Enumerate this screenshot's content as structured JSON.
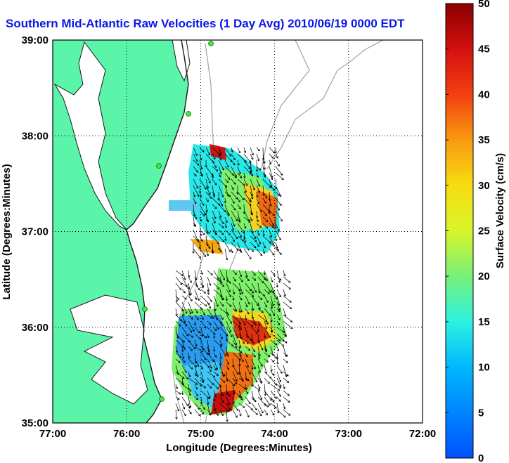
{
  "title": "Southern Mid-Atlantic Raw Velocities (1 Day Avg) 2010/06/19 0000 EDT",
  "map": {
    "x_axis_label": "Longitude (Degrees:Minutes)",
    "y_axis_label": "Latitude (Degrees:Minutes)",
    "x_ticks": [
      {
        "value": -77,
        "label": "77:00"
      },
      {
        "value": -76,
        "label": "76:00"
      },
      {
        "value": -75,
        "label": "75:00"
      },
      {
        "value": -74,
        "label": "74:00"
      },
      {
        "value": -73,
        "label": "73:00"
      },
      {
        "value": -72,
        "label": "72:00"
      }
    ],
    "y_ticks": [
      {
        "value": 35,
        "label": "35:00"
      },
      {
        "value": 36,
        "label": "36:00"
      },
      {
        "value": 37,
        "label": "37:00"
      },
      {
        "value": 38,
        "label": "38:00"
      },
      {
        "value": 39,
        "label": "39:00"
      }
    ],
    "lon_range": [
      -77,
      -72
    ],
    "lat_range": [
      35,
      39
    ],
    "grid": "dotted",
    "land_color": "#5af5a8",
    "station_color": "#41e641"
  },
  "colorbar": {
    "label": "Surface Velocity (cm/s)",
    "units": "cm/s",
    "range": [
      0,
      50
    ],
    "ticks": [
      0,
      5,
      10,
      15,
      20,
      25,
      30,
      35,
      40,
      45,
      50
    ],
    "colormap": "jet"
  }
}
